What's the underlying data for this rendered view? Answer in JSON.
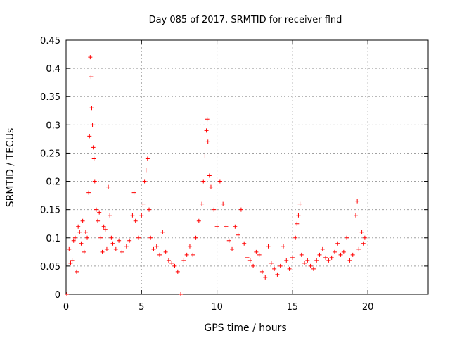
{
  "chart_data": {
    "type": "scatter",
    "title": "Day 085 of 2017, SRMTID for receiver flnd",
    "xlabel": "GPS time / hours",
    "ylabel": "SRMTID / TECUs",
    "xlim": [
      0,
      24
    ],
    "ylim": [
      0,
      0.45
    ],
    "xticks": [
      0,
      5,
      10,
      15,
      20
    ],
    "xtick_labels": [
      "0",
      "5",
      "10",
      "15",
      "20"
    ],
    "yticks": [
      0,
      0.05,
      0.1,
      0.15,
      0.2,
      0.25,
      0.3,
      0.35,
      0.4,
      0.45
    ],
    "ytick_labels": [
      "0",
      "0.05",
      "0.1",
      "0.15",
      "0.2",
      "0.25",
      "0.3",
      "0.35",
      "0.4",
      "0.45"
    ],
    "grid": true,
    "marker": "+",
    "color": "#ff0000",
    "series": [
      {
        "values": [
          [
            0.05,
            0.0
          ],
          [
            0.2,
            0.08
          ],
          [
            0.3,
            0.055
          ],
          [
            0.4,
            0.06
          ],
          [
            0.5,
            0.095
          ],
          [
            0.6,
            0.1
          ],
          [
            0.7,
            0.04
          ],
          [
            0.8,
            0.12
          ],
          [
            0.9,
            0.11
          ],
          [
            1.0,
            0.09
          ],
          [
            1.1,
            0.13
          ],
          [
            1.2,
            0.075
          ],
          [
            1.3,
            0.11
          ],
          [
            1.4,
            0.1
          ],
          [
            1.5,
            0.18
          ],
          [
            1.55,
            0.28
          ],
          [
            1.6,
            0.42
          ],
          [
            1.65,
            0.385
          ],
          [
            1.7,
            0.33
          ],
          [
            1.75,
            0.3
          ],
          [
            1.8,
            0.26
          ],
          [
            1.85,
            0.24
          ],
          [
            1.9,
            0.2
          ],
          [
            2.0,
            0.15
          ],
          [
            2.1,
            0.13
          ],
          [
            2.2,
            0.145
          ],
          [
            2.3,
            0.1
          ],
          [
            2.4,
            0.075
          ],
          [
            2.5,
            0.12
          ],
          [
            2.6,
            0.115
          ],
          [
            2.7,
            0.08
          ],
          [
            2.8,
            0.19
          ],
          [
            2.9,
            0.14
          ],
          [
            3.0,
            0.1
          ],
          [
            3.1,
            0.09
          ],
          [
            3.3,
            0.08
          ],
          [
            3.5,
            0.095
          ],
          [
            3.7,
            0.075
          ],
          [
            4.0,
            0.085
          ],
          [
            4.2,
            0.095
          ],
          [
            4.4,
            0.14
          ],
          [
            4.5,
            0.18
          ],
          [
            4.6,
            0.13
          ],
          [
            4.8,
            0.1
          ],
          [
            5.0,
            0.14
          ],
          [
            5.1,
            0.16
          ],
          [
            5.2,
            0.2
          ],
          [
            5.3,
            0.22
          ],
          [
            5.4,
            0.24
          ],
          [
            5.5,
            0.15
          ],
          [
            5.6,
            0.1
          ],
          [
            5.8,
            0.08
          ],
          [
            6.0,
            0.085
          ],
          [
            6.2,
            0.07
          ],
          [
            6.4,
            0.11
          ],
          [
            6.6,
            0.075
          ],
          [
            6.8,
            0.06
          ],
          [
            7.0,
            0.055
          ],
          [
            7.2,
            0.05
          ],
          [
            7.4,
            0.04
          ],
          [
            7.6,
            0.0
          ],
          [
            7.8,
            0.06
          ],
          [
            8.0,
            0.07
          ],
          [
            8.2,
            0.085
          ],
          [
            8.4,
            0.07
          ],
          [
            8.6,
            0.1
          ],
          [
            8.8,
            0.13
          ],
          [
            9.0,
            0.16
          ],
          [
            9.1,
            0.2
          ],
          [
            9.2,
            0.245
          ],
          [
            9.3,
            0.29
          ],
          [
            9.35,
            0.31
          ],
          [
            9.4,
            0.27
          ],
          [
            9.5,
            0.21
          ],
          [
            9.6,
            0.19
          ],
          [
            9.8,
            0.15
          ],
          [
            10.0,
            0.12
          ],
          [
            10.2,
            0.2
          ],
          [
            10.4,
            0.16
          ],
          [
            10.6,
            0.12
          ],
          [
            10.8,
            0.095
          ],
          [
            11.0,
            0.08
          ],
          [
            11.2,
            0.12
          ],
          [
            11.4,
            0.105
          ],
          [
            11.6,
            0.15
          ],
          [
            11.8,
            0.09
          ],
          [
            12.0,
            0.065
          ],
          [
            12.2,
            0.06
          ],
          [
            12.4,
            0.05
          ],
          [
            12.6,
            0.075
          ],
          [
            12.8,
            0.07
          ],
          [
            13.0,
            0.04
          ],
          [
            13.2,
            0.03
          ],
          [
            13.4,
            0.085
          ],
          [
            13.6,
            0.055
          ],
          [
            13.8,
            0.045
          ],
          [
            14.0,
            0.035
          ],
          [
            14.2,
            0.05
          ],
          [
            14.4,
            0.085
          ],
          [
            14.6,
            0.06
          ],
          [
            14.8,
            0.045
          ],
          [
            15.0,
            0.065
          ],
          [
            15.2,
            0.1
          ],
          [
            15.3,
            0.125
          ],
          [
            15.4,
            0.14
          ],
          [
            15.5,
            0.16
          ],
          [
            15.6,
            0.07
          ],
          [
            15.8,
            0.055
          ],
          [
            16.0,
            0.06
          ],
          [
            16.2,
            0.05
          ],
          [
            16.4,
            0.045
          ],
          [
            16.6,
            0.06
          ],
          [
            16.8,
            0.07
          ],
          [
            17.0,
            0.08
          ],
          [
            17.2,
            0.065
          ],
          [
            17.4,
            0.06
          ],
          [
            17.6,
            0.065
          ],
          [
            17.8,
            0.075
          ],
          [
            18.0,
            0.09
          ],
          [
            18.2,
            0.07
          ],
          [
            18.4,
            0.075
          ],
          [
            18.6,
            0.1
          ],
          [
            18.8,
            0.06
          ],
          [
            19.0,
            0.07
          ],
          [
            19.2,
            0.14
          ],
          [
            19.3,
            0.165
          ],
          [
            19.4,
            0.08
          ],
          [
            19.6,
            0.11
          ],
          [
            19.7,
            0.09
          ],
          [
            19.8,
            0.1
          ]
        ]
      }
    ]
  }
}
